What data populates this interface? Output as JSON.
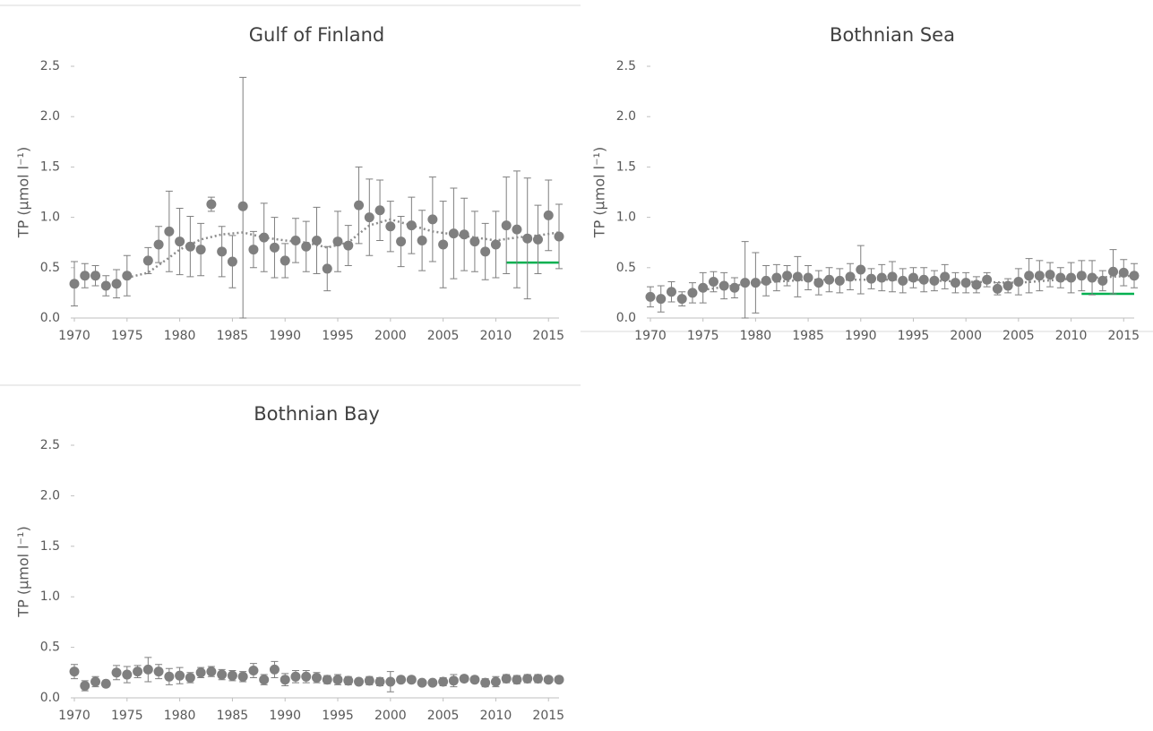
{
  "chart_data": [
    {
      "type": "scatter",
      "title": "Gulf of Finland",
      "y_label": "TP (µmol l⁻¹)",
      "x": [
        1970,
        1971,
        1972,
        1973,
        1974,
        1975,
        1976,
        1977,
        1978,
        1979,
        1980,
        1981,
        1982,
        1983,
        1984,
        1985,
        1986,
        1987,
        1988,
        1989,
        1990,
        1991,
        1992,
        1993,
        1994,
        1995,
        1996,
        1997,
        1998,
        1999,
        2000,
        2001,
        2002,
        2003,
        2004,
        2005,
        2006,
        2007,
        2008,
        2009,
        2010,
        2011,
        2012,
        2013,
        2014,
        2015,
        2016
      ],
      "values": [
        0.34,
        0.42,
        0.42,
        0.32,
        0.34,
        0.42,
        null,
        0.57,
        0.73,
        0.86,
        0.76,
        0.71,
        0.68,
        1.13,
        0.66,
        0.56,
        1.11,
        0.68,
        0.8,
        0.7,
        0.57,
        0.77,
        0.71,
        0.77,
        0.49,
        0.76,
        0.72,
        1.12,
        1.0,
        1.07,
        0.91,
        0.76,
        0.92,
        0.77,
        0.98,
        0.73,
        0.84,
        0.83,
        0.76,
        0.66,
        0.73,
        0.92,
        0.88,
        0.79,
        0.78,
        1.02,
        0.81
      ],
      "errors": [
        0.22,
        0.12,
        0.1,
        0.1,
        0.14,
        0.2,
        null,
        0.13,
        0.18,
        0.4,
        0.33,
        0.3,
        0.26,
        0.07,
        0.25,
        0.26,
        1.28,
        0.18,
        0.34,
        0.3,
        0.17,
        0.22,
        0.25,
        0.33,
        0.22,
        0.3,
        0.2,
        0.38,
        0.38,
        0.3,
        0.25,
        0.25,
        0.28,
        0.3,
        0.42,
        0.43,
        0.45,
        0.36,
        0.3,
        0.28,
        0.33,
        0.48,
        0.58,
        0.6,
        0.34,
        0.35,
        0.32
      ],
      "color": "#7f7f7f",
      "trend": {
        "x": [
          1975,
          1977,
          1979,
          1980,
          1982,
          1984,
          1986,
          1988,
          1990,
          1992,
          1994,
          1996,
          1998,
          2000,
          2002,
          2004,
          2006,
          2008,
          2010,
          2012,
          2014,
          2016
        ],
        "values": [
          0.4,
          0.45,
          0.6,
          0.68,
          0.78,
          0.83,
          0.85,
          0.8,
          0.77,
          0.75,
          0.7,
          0.75,
          0.92,
          0.98,
          0.92,
          0.86,
          0.83,
          0.8,
          0.77,
          0.8,
          0.82,
          0.85
        ],
        "color": "#8c8c8c"
      },
      "target": {
        "x": [
          2011,
          2016
        ],
        "value": 0.55,
        "color": "#00b050"
      },
      "xlim": [
        1970,
        2016
      ],
      "xticks": [
        1970,
        1975,
        1980,
        1985,
        1990,
        1995,
        2000,
        2005,
        2010,
        2015
      ],
      "ylim": [
        0,
        2.5
      ],
      "yticks": [
        {
          "value": 0,
          "label": "0.0"
        },
        0.5,
        {
          "value": 1,
          "label": "1.0"
        },
        1.5,
        {
          "value": 2,
          "label": "2.0"
        },
        2.5
      ]
    },
    {
      "type": "scatter",
      "title": "Bothnian Sea",
      "y_label": "TP (µmol l⁻¹)",
      "x": [
        1970,
        1971,
        1972,
        1973,
        1974,
        1975,
        1976,
        1977,
        1978,
        1979,
        1980,
        1981,
        1982,
        1983,
        1984,
        1985,
        1986,
        1987,
        1988,
        1989,
        1990,
        1991,
        1992,
        1993,
        1994,
        1995,
        1996,
        1997,
        1998,
        1999,
        2000,
        2001,
        2002,
        2003,
        2004,
        2005,
        2006,
        2007,
        2008,
        2009,
        2010,
        2011,
        2012,
        2013,
        2014,
        2015,
        2016
      ],
      "values": [
        0.21,
        0.19,
        0.26,
        0.19,
        0.25,
        0.3,
        0.36,
        0.32,
        0.3,
        0.35,
        0.35,
        0.37,
        0.4,
        0.42,
        0.41,
        0.4,
        0.35,
        0.38,
        0.37,
        0.41,
        0.48,
        0.39,
        0.4,
        0.41,
        0.37,
        0.4,
        0.38,
        0.37,
        0.41,
        0.35,
        0.35,
        0.33,
        0.38,
        0.29,
        0.32,
        0.36,
        0.42,
        0.42,
        0.43,
        0.4,
        0.4,
        0.42,
        0.4,
        0.37,
        0.46,
        0.45,
        0.42
      ],
      "errors": [
        0.1,
        0.13,
        0.1,
        0.07,
        0.1,
        0.15,
        0.1,
        0.13,
        0.1,
        0.41,
        0.3,
        0.15,
        0.13,
        0.1,
        0.2,
        0.12,
        0.12,
        0.12,
        0.12,
        0.13,
        0.24,
        0.1,
        0.13,
        0.15,
        0.12,
        0.1,
        0.12,
        0.1,
        0.12,
        0.1,
        0.1,
        0.08,
        0.07,
        0.06,
        0.07,
        0.13,
        0.17,
        0.15,
        0.12,
        0.1,
        0.15,
        0.15,
        0.17,
        0.1,
        0.22,
        0.13,
        0.12
      ],
      "color": "#7f7f7f",
      "trend": {
        "x": [
          1975,
          1980,
          1985,
          1990,
          1995,
          2000,
          2005,
          2010,
          2016
        ],
        "values": [
          0.28,
          0.35,
          0.38,
          0.38,
          0.38,
          0.36,
          0.35,
          0.39,
          0.42
        ],
        "color": "#8c8c8c"
      },
      "target": {
        "x": [
          2011,
          2016
        ],
        "value": 0.24,
        "color": "#00b050"
      },
      "xlim": [
        1970,
        2016
      ],
      "xticks": [
        1970,
        1975,
        1980,
        1985,
        1990,
        1995,
        2000,
        2005,
        2010,
        2015
      ],
      "ylim": [
        0,
        2.5
      ],
      "yticks": [
        {
          "value": 0,
          "label": "0.0"
        },
        0.5,
        {
          "value": 1,
          "label": "1.0"
        },
        1.5,
        {
          "value": 2,
          "label": "2.0"
        },
        2.5
      ]
    },
    {
      "type": "scatter",
      "title": "Bothnian Bay",
      "y_label": "TP (µmol l⁻¹)",
      "x": [
        1970,
        1971,
        1972,
        1973,
        1974,
        1975,
        1976,
        1977,
        1978,
        1979,
        1980,
        1981,
        1982,
        1983,
        1984,
        1985,
        1986,
        1987,
        1988,
        1989,
        1990,
        1991,
        1992,
        1993,
        1994,
        1995,
        1996,
        1997,
        1998,
        1999,
        2000,
        2001,
        2002,
        2003,
        2004,
        2005,
        2006,
        2007,
        2008,
        2009,
        2010,
        2011,
        2012,
        2013,
        2014,
        2015,
        2016
      ],
      "values": [
        0.26,
        0.12,
        0.16,
        0.14,
        0.25,
        0.23,
        0.26,
        0.28,
        0.26,
        0.21,
        0.22,
        0.2,
        0.25,
        0.26,
        0.23,
        0.22,
        0.21,
        0.27,
        0.18,
        0.28,
        0.18,
        0.21,
        0.21,
        0.2,
        0.18,
        0.18,
        0.17,
        0.16,
        0.17,
        0.16,
        0.16,
        0.18,
        0.18,
        0.15,
        0.15,
        0.16,
        0.17,
        0.19,
        0.18,
        0.15,
        0.16,
        0.19,
        0.18,
        0.19,
        0.19,
        0.18,
        0.18
      ],
      "errors": [
        0.07,
        0.05,
        0.05,
        0.03,
        0.07,
        0.08,
        0.06,
        0.12,
        0.07,
        0.08,
        0.08,
        0.05,
        0.05,
        0.05,
        0.05,
        0.05,
        0.05,
        0.07,
        0.05,
        0.08,
        0.06,
        0.06,
        0.06,
        0.05,
        0.04,
        0.05,
        0.04,
        0.03,
        0.04,
        0.04,
        0.1,
        0.03,
        0.03,
        0.02,
        0.02,
        0.04,
        0.06,
        0.03,
        0.03,
        0.04,
        0.05,
        0.04,
        0.04,
        0.04,
        0.04,
        0.02,
        0.02
      ],
      "color": "#7f7f7f",
      "xlim": [
        1970,
        2016
      ],
      "xticks": [
        1970,
        1975,
        1980,
        1985,
        1990,
        1995,
        2000,
        2005,
        2010,
        2015
      ],
      "ylim": [
        0,
        2.5
      ],
      "yticks": [
        {
          "value": 0,
          "label": "0.0"
        },
        0.5,
        {
          "value": 1,
          "label": "1.0"
        },
        1.5,
        {
          "value": 2,
          "label": "2.0"
        },
        2.5
      ]
    }
  ]
}
